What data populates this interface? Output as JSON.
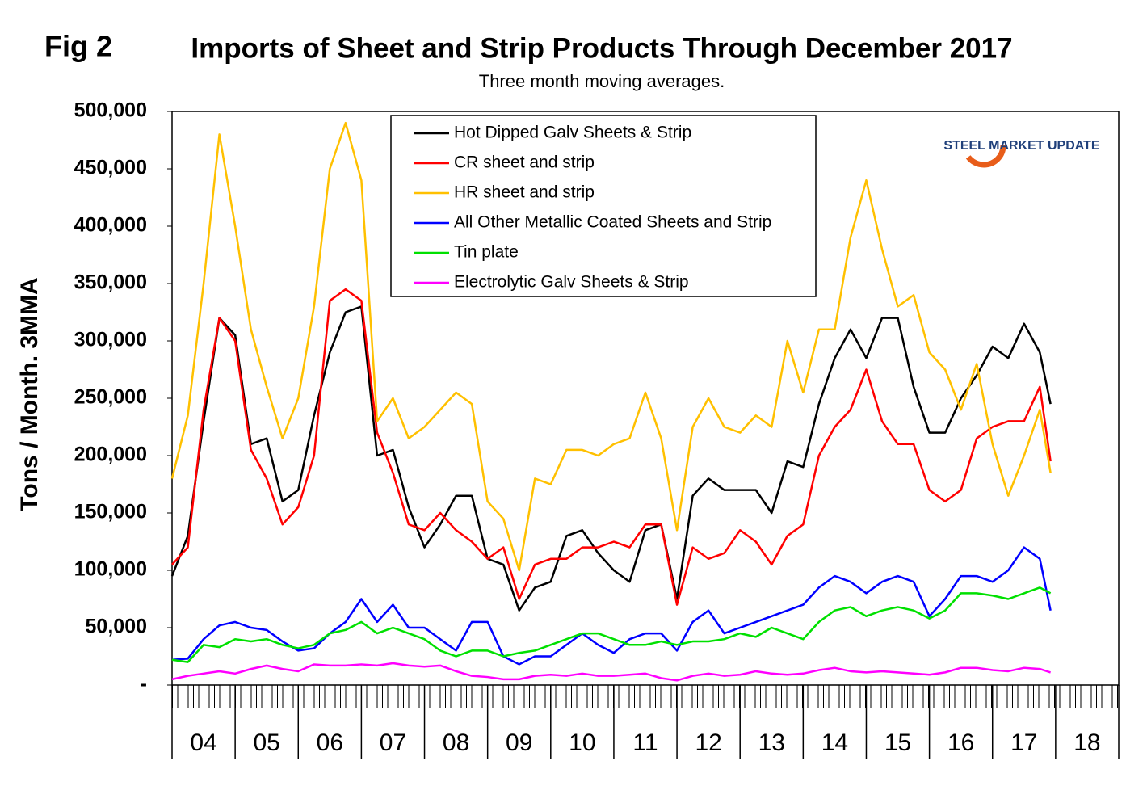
{
  "chart_data": {
    "type": "line",
    "figure_label": "Fig 2",
    "title": "Imports of Sheet and Strip Products Through December 2017",
    "subtitle": "Three month moving averages.",
    "y_label": "Tons / Month. 3MMA",
    "logo": "STEEL MARKET UPDATE",
    "legend": "top",
    "x": [
      2004,
      2004.25,
      2004.5,
      2004.75,
      2005,
      2005.25,
      2005.5,
      2005.75,
      2006,
      2006.25,
      2006.5,
      2006.75,
      2007,
      2007.25,
      2007.5,
      2007.75,
      2008,
      2008.25,
      2008.5,
      2008.75,
      2009,
      2009.25,
      2009.5,
      2009.75,
      2010,
      2010.25,
      2010.5,
      2010.75,
      2011,
      2011.25,
      2011.5,
      2011.75,
      2012,
      2012.25,
      2012.5,
      2012.75,
      2013,
      2013.25,
      2013.5,
      2013.75,
      2014,
      2014.25,
      2014.5,
      2014.75,
      2015,
      2015.25,
      2015.5,
      2015.75,
      2016,
      2016.25,
      2016.5,
      2016.75,
      2017,
      2017.25,
      2017.5,
      2017.75,
      2017.92
    ],
    "xlim": [
      2004,
      2019
    ],
    "xticks": [
      {
        "value": 2004,
        "label": "04"
      },
      {
        "value": 2005,
        "label": "05"
      },
      {
        "value": 2006,
        "label": "06"
      },
      {
        "value": 2007,
        "label": "07"
      },
      {
        "value": 2008,
        "label": "08"
      },
      {
        "value": 2009,
        "label": "09"
      },
      {
        "value": 2010,
        "label": "10"
      },
      {
        "value": 2011,
        "label": "11"
      },
      {
        "value": 2012,
        "label": "12"
      },
      {
        "value": 2013,
        "label": "13"
      },
      {
        "value": 2014,
        "label": "14"
      },
      {
        "value": 2015,
        "label": "15"
      },
      {
        "value": 2016,
        "label": "16"
      },
      {
        "value": 2017,
        "label": "17"
      },
      {
        "value": 2018,
        "label": "18"
      }
    ],
    "ylim": [
      0,
      500000
    ],
    "yticks": [
      {
        "value": 0,
        "label": "-"
      },
      {
        "value": 50000,
        "label": "50,000"
      },
      {
        "value": 100000,
        "label": "100,000"
      },
      {
        "value": 150000,
        "label": "150,000"
      },
      {
        "value": 200000,
        "label": "200,000"
      },
      {
        "value": 250000,
        "label": "250,000"
      },
      {
        "value": 300000,
        "label": "300,000"
      },
      {
        "value": 350000,
        "label": "350,000"
      },
      {
        "value": 400000,
        "label": "400,000"
      },
      {
        "value": 450000,
        "label": "450,000"
      },
      {
        "value": 500000,
        "label": "500,000"
      }
    ],
    "series": [
      {
        "name": "Hot Dipped Galv Sheets & Strip",
        "color": "#000000",
        "values": [
          95000,
          130000,
          230000,
          320000,
          305000,
          210000,
          215000,
          160000,
          170000,
          235000,
          290000,
          325000,
          330000,
          200000,
          205000,
          155000,
          120000,
          140000,
          165000,
          165000,
          110000,
          105000,
          65000,
          85000,
          90000,
          130000,
          135000,
          115000,
          100000,
          90000,
          135000,
          140000,
          75000,
          165000,
          180000,
          170000,
          170000,
          170000,
          150000,
          195000,
          190000,
          245000,
          285000,
          310000,
          285000,
          320000,
          320000,
          260000,
          220000,
          220000,
          250000,
          270000,
          295000,
          285000,
          315000,
          290000,
          245000
        ]
      },
      {
        "name": "CR sheet and strip",
        "color": "#ff0000",
        "values": [
          105000,
          120000,
          240000,
          320000,
          300000,
          205000,
          180000,
          140000,
          155000,
          200000,
          335000,
          345000,
          335000,
          220000,
          185000,
          140000,
          135000,
          150000,
          135000,
          125000,
          110000,
          120000,
          75000,
          105000,
          110000,
          110000,
          120000,
          120000,
          125000,
          120000,
          140000,
          140000,
          70000,
          120000,
          110000,
          115000,
          135000,
          125000,
          105000,
          130000,
          140000,
          200000,
          225000,
          240000,
          275000,
          230000,
          210000,
          210000,
          170000,
          160000,
          170000,
          215000,
          225000,
          230000,
          230000,
          260000,
          195000
        ]
      },
      {
        "name": "HR sheet and strip",
        "color": "#ffc000",
        "values": [
          180000,
          235000,
          350000,
          480000,
          400000,
          310000,
          260000,
          215000,
          250000,
          330000,
          450000,
          490000,
          440000,
          230000,
          250000,
          215000,
          225000,
          240000,
          255000,
          245000,
          160000,
          145000,
          100000,
          180000,
          175000,
          205000,
          205000,
          200000,
          210000,
          215000,
          255000,
          215000,
          135000,
          225000,
          250000,
          225000,
          220000,
          235000,
          225000,
          300000,
          255000,
          310000,
          310000,
          390000,
          440000,
          380000,
          330000,
          340000,
          290000,
          275000,
          240000,
          280000,
          210000,
          165000,
          200000,
          240000,
          185000
        ]
      },
      {
        "name": "All Other Metallic Coated Sheets and Strip",
        "color": "#0000ff",
        "values": [
          22000,
          23000,
          40000,
          52000,
          55000,
          50000,
          48000,
          38000,
          30000,
          32000,
          45000,
          55000,
          75000,
          55000,
          70000,
          50000,
          50000,
          40000,
          30000,
          55000,
          55000,
          25000,
          18000,
          25000,
          25000,
          35000,
          45000,
          35000,
          28000,
          40000,
          45000,
          45000,
          30000,
          55000,
          65000,
          45000,
          50000,
          55000,
          60000,
          65000,
          70000,
          85000,
          95000,
          90000,
          80000,
          90000,
          95000,
          90000,
          60000,
          75000,
          95000,
          95000,
          90000,
          100000,
          120000,
          110000,
          65000
        ]
      },
      {
        "name": "Tin plate",
        "color": "#00e000",
        "values": [
          22000,
          20000,
          35000,
          33000,
          40000,
          38000,
          40000,
          35000,
          32000,
          35000,
          45000,
          48000,
          55000,
          45000,
          50000,
          45000,
          40000,
          30000,
          25000,
          30000,
          30000,
          25000,
          28000,
          30000,
          35000,
          40000,
          45000,
          45000,
          40000,
          35000,
          35000,
          38000,
          35000,
          38000,
          38000,
          40000,
          45000,
          42000,
          50000,
          45000,
          40000,
          55000,
          65000,
          68000,
          60000,
          65000,
          68000,
          65000,
          58000,
          65000,
          80000,
          80000,
          78000,
          75000,
          80000,
          85000,
          80000
        ]
      },
      {
        "name": "Electrolytic Galv Sheets & Strip",
        "color": "#ff00ff",
        "values": [
          5000,
          8000,
          10000,
          12000,
          10000,
          14000,
          17000,
          14000,
          12000,
          18000,
          17000,
          17000,
          18000,
          17000,
          19000,
          17000,
          16000,
          17000,
          12000,
          8000,
          7000,
          5000,
          5000,
          8000,
          9000,
          8000,
          10000,
          8000,
          8000,
          9000,
          10000,
          6000,
          4000,
          8000,
          10000,
          8000,
          9000,
          12000,
          10000,
          9000,
          10000,
          13000,
          15000,
          12000,
          11000,
          12000,
          11000,
          10000,
          9000,
          11000,
          15000,
          15000,
          13000,
          12000,
          15000,
          14000,
          11000
        ]
      }
    ]
  }
}
